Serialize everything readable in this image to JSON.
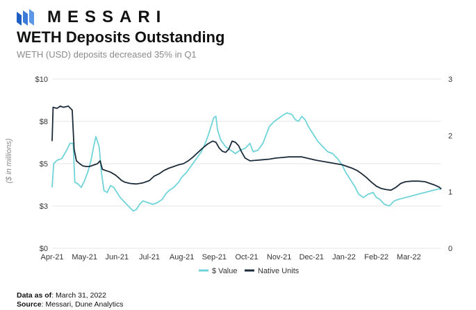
{
  "brand": {
    "name": "MESSARI"
  },
  "title": "WETH Deposits Outstanding",
  "subtitle": "WETH (USD) deposits decreased 35% in Q1",
  "footer": {
    "data_as_of_label": "Data as of",
    "data_as_of_value": ": March 31, 2022",
    "source_label": "Source",
    "source_value": ": Messari, Dune Analytics"
  },
  "colors": {
    "value": "#6fd4d8",
    "native": "#1c2b3a",
    "grid": "#e6e6e6",
    "axis_text": "#333333",
    "brand_mark": "#3d7bd9"
  },
  "chart_data": {
    "type": "line",
    "xlabel": "",
    "ylabel": "($ in millions)",
    "y_ticks": [
      "$0",
      "$3",
      "$5",
      "$8",
      "$10"
    ],
    "y_range": [
      0,
      10
    ],
    "y2_ticks": [
      "0",
      "1",
      "2",
      "3"
    ],
    "y2_range": [
      0,
      3
    ],
    "x_ticks": [
      "Apr-21",
      "May-21",
      "Jun-21",
      "Jul-21",
      "Aug-21",
      "Sep-21",
      "Oct-21",
      "Nov-21",
      "Dec-21",
      "Jan-22",
      "Feb-22",
      "Mar-22"
    ],
    "x_range": [
      0,
      12
    ],
    "grid": "horizontal",
    "legend": {
      "position": "bottom",
      "entries": [
        "$ Value",
        "Native Units"
      ]
    },
    "series": [
      {
        "name": "$ Value",
        "axis": "left",
        "points": [
          [
            0.0,
            3.6
          ],
          [
            0.05,
            5.0
          ],
          [
            0.15,
            5.2
          ],
          [
            0.3,
            5.3
          ],
          [
            0.45,
            5.8
          ],
          [
            0.55,
            6.2
          ],
          [
            0.65,
            6.2
          ],
          [
            0.7,
            3.9
          ],
          [
            0.8,
            3.8
          ],
          [
            0.9,
            3.6
          ],
          [
            1.0,
            4.0
          ],
          [
            1.1,
            4.5
          ],
          [
            1.2,
            5.2
          ],
          [
            1.3,
            6.2
          ],
          [
            1.35,
            6.6
          ],
          [
            1.45,
            6.0
          ],
          [
            1.52,
            4.5
          ],
          [
            1.6,
            3.4
          ],
          [
            1.7,
            3.3
          ],
          [
            1.8,
            3.7
          ],
          [
            1.9,
            3.6
          ],
          [
            2.0,
            3.3
          ],
          [
            2.1,
            3.0
          ],
          [
            2.2,
            2.8
          ],
          [
            2.3,
            2.6
          ],
          [
            2.4,
            2.4
          ],
          [
            2.5,
            2.2
          ],
          [
            2.6,
            2.3
          ],
          [
            2.7,
            2.6
          ],
          [
            2.8,
            2.8
          ],
          [
            2.95,
            2.7
          ],
          [
            3.1,
            2.6
          ],
          [
            3.25,
            2.7
          ],
          [
            3.4,
            2.9
          ],
          [
            3.5,
            3.2
          ],
          [
            3.6,
            3.4
          ],
          [
            3.75,
            3.6
          ],
          [
            3.9,
            3.9
          ],
          [
            4.0,
            4.2
          ],
          [
            4.15,
            4.5
          ],
          [
            4.3,
            4.9
          ],
          [
            4.45,
            5.3
          ],
          [
            4.6,
            5.7
          ],
          [
            4.7,
            6.1
          ],
          [
            4.8,
            6.6
          ],
          [
            4.9,
            7.2
          ],
          [
            4.98,
            7.7
          ],
          [
            5.05,
            7.8
          ],
          [
            5.1,
            7.0
          ],
          [
            5.2,
            6.4
          ],
          [
            5.35,
            6.0
          ],
          [
            5.5,
            5.8
          ],
          [
            5.65,
            5.6
          ],
          [
            5.8,
            5.8
          ],
          [
            5.95,
            5.9
          ],
          [
            6.1,
            6.2
          ],
          [
            6.2,
            5.7
          ],
          [
            6.35,
            5.8
          ],
          [
            6.5,
            6.2
          ],
          [
            6.6,
            6.7
          ],
          [
            6.7,
            7.2
          ],
          [
            6.85,
            7.5
          ],
          [
            7.0,
            7.7
          ],
          [
            7.15,
            7.9
          ],
          [
            7.25,
            8.0
          ],
          [
            7.4,
            7.9
          ],
          [
            7.5,
            7.6
          ],
          [
            7.6,
            7.5
          ],
          [
            7.7,
            7.8
          ],
          [
            7.8,
            7.6
          ],
          [
            7.9,
            7.2
          ],
          [
            8.0,
            6.9
          ],
          [
            8.1,
            6.6
          ],
          [
            8.2,
            6.3
          ],
          [
            8.35,
            6.0
          ],
          [
            8.5,
            5.7
          ],
          [
            8.65,
            5.6
          ],
          [
            8.8,
            5.3
          ],
          [
            8.95,
            4.9
          ],
          [
            9.05,
            4.5
          ],
          [
            9.15,
            4.2
          ],
          [
            9.25,
            3.9
          ],
          [
            9.35,
            3.6
          ],
          [
            9.45,
            3.2
          ],
          [
            9.6,
            3.0
          ],
          [
            9.75,
            3.2
          ],
          [
            9.9,
            3.3
          ],
          [
            10.0,
            3.0
          ],
          [
            10.1,
            2.9
          ],
          [
            10.25,
            2.6
          ],
          [
            10.4,
            2.5
          ],
          [
            10.55,
            2.8
          ],
          [
            10.7,
            2.9
          ],
          [
            10.9,
            3.0
          ],
          [
            11.1,
            3.1
          ],
          [
            11.3,
            3.2
          ],
          [
            11.5,
            3.3
          ],
          [
            11.7,
            3.4
          ],
          [
            11.9,
            3.5
          ],
          [
            12.0,
            3.5
          ]
        ]
      },
      {
        "name": "Native Units",
        "axis": "right",
        "points": [
          [
            0.0,
            1.9
          ],
          [
            0.03,
            2.5
          ],
          [
            0.15,
            2.48
          ],
          [
            0.25,
            2.52
          ],
          [
            0.35,
            2.5
          ],
          [
            0.5,
            2.52
          ],
          [
            0.62,
            2.45
          ],
          [
            0.68,
            1.75
          ],
          [
            0.75,
            1.55
          ],
          [
            0.85,
            1.5
          ],
          [
            0.95,
            1.46
          ],
          [
            1.05,
            1.45
          ],
          [
            1.15,
            1.45
          ],
          [
            1.3,
            1.48
          ],
          [
            1.4,
            1.5
          ],
          [
            1.48,
            1.55
          ],
          [
            1.55,
            1.4
          ],
          [
            1.65,
            1.38
          ],
          [
            1.8,
            1.35
          ],
          [
            1.95,
            1.3
          ],
          [
            2.05,
            1.25
          ],
          [
            2.15,
            1.2
          ],
          [
            2.25,
            1.17
          ],
          [
            2.4,
            1.15
          ],
          [
            2.6,
            1.14
          ],
          [
            2.8,
            1.16
          ],
          [
            3.0,
            1.2
          ],
          [
            3.15,
            1.28
          ],
          [
            3.3,
            1.32
          ],
          [
            3.45,
            1.38
          ],
          [
            3.6,
            1.42
          ],
          [
            3.75,
            1.45
          ],
          [
            3.9,
            1.48
          ],
          [
            4.05,
            1.5
          ],
          [
            4.2,
            1.55
          ],
          [
            4.35,
            1.62
          ],
          [
            4.5,
            1.7
          ],
          [
            4.65,
            1.78
          ],
          [
            4.8,
            1.85
          ],
          [
            4.95,
            1.9
          ],
          [
            5.05,
            1.88
          ],
          [
            5.15,
            1.78
          ],
          [
            5.25,
            1.72
          ],
          [
            5.35,
            1.7
          ],
          [
            5.45,
            1.76
          ],
          [
            5.55,
            1.9
          ],
          [
            5.65,
            1.88
          ],
          [
            5.75,
            1.82
          ],
          [
            5.85,
            1.7
          ],
          [
            5.95,
            1.6
          ],
          [
            6.1,
            1.55
          ],
          [
            6.3,
            1.56
          ],
          [
            6.5,
            1.57
          ],
          [
            6.7,
            1.58
          ],
          [
            6.9,
            1.6
          ],
          [
            7.1,
            1.61
          ],
          [
            7.3,
            1.62
          ],
          [
            7.5,
            1.62
          ],
          [
            7.7,
            1.62
          ],
          [
            7.85,
            1.6
          ],
          [
            8.0,
            1.58
          ],
          [
            8.15,
            1.56
          ],
          [
            8.35,
            1.54
          ],
          [
            8.55,
            1.52
          ],
          [
            8.75,
            1.5
          ],
          [
            8.95,
            1.48
          ],
          [
            9.1,
            1.45
          ],
          [
            9.25,
            1.42
          ],
          [
            9.4,
            1.38
          ],
          [
            9.55,
            1.32
          ],
          [
            9.7,
            1.25
          ],
          [
            9.85,
            1.17
          ],
          [
            10.0,
            1.1
          ],
          [
            10.15,
            1.06
          ],
          [
            10.3,
            1.04
          ],
          [
            10.45,
            1.03
          ],
          [
            10.6,
            1.08
          ],
          [
            10.75,
            1.15
          ],
          [
            10.9,
            1.18
          ],
          [
            11.1,
            1.19
          ],
          [
            11.3,
            1.19
          ],
          [
            11.5,
            1.18
          ],
          [
            11.65,
            1.15
          ],
          [
            11.8,
            1.12
          ],
          [
            11.95,
            1.08
          ],
          [
            12.0,
            1.05
          ]
        ]
      }
    ]
  }
}
